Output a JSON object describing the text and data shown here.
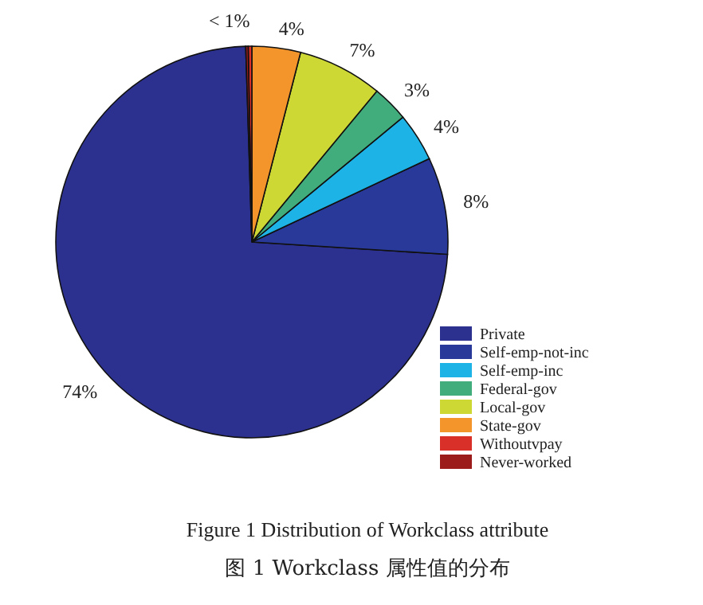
{
  "chart_data": {
    "type": "pie",
    "title": "Figure 1  Distribution of Workclass attribute",
    "subtitle": "图 1  Workclass 属性值的分布",
    "categories": [
      "Private",
      "Self-emp-not-inc",
      "Self-emp-inc",
      "Federal-gov",
      "Local-gov",
      "State-gov",
      "Withoutvpay",
      "Never-worked"
    ],
    "values": [
      73.5,
      8,
      4,
      3,
      7,
      4,
      0.3,
      0.2
    ],
    "colors": [
      "#2c3190",
      "#28399a",
      "#1eb3e6",
      "#41ad7c",
      "#cdd834",
      "#f3952b",
      "#d9302a",
      "#9c1c1c"
    ],
    "value_labels": [
      "74%",
      "8%",
      "4%",
      "3%",
      "7%",
      "4%",
      "< 1%",
      null
    ],
    "legend": "bottom right"
  }
}
